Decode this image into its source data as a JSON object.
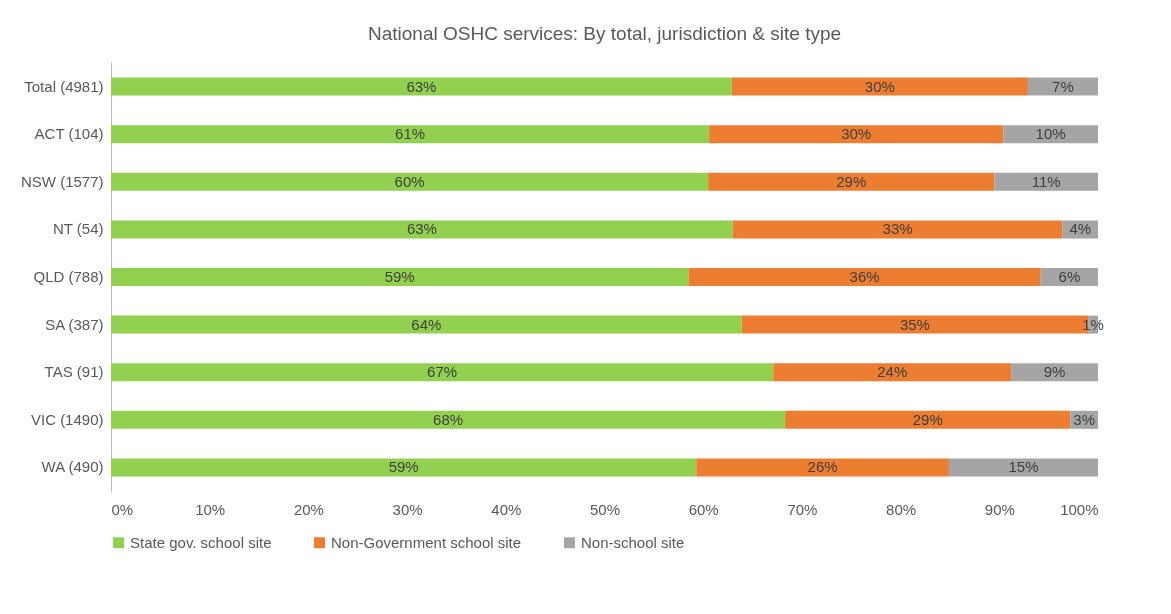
{
  "chart_data": {
    "type": "bar",
    "orientation": "horizontal",
    "stacked": true,
    "title": "National OSHC services: By total, jurisdiction & site type",
    "categories": [
      "Total (4981)",
      "ACT (104)",
      "NSW (1577)",
      "NT (54)",
      "QLD (788)",
      "SA (387)",
      "TAS (91)",
      "VIC (1490)",
      "WA (490)"
    ],
    "series": [
      {
        "name": "State gov. school site",
        "color": "#92d050",
        "values": [
          62.9,
          60.6,
          60.5,
          63.0,
          58.5,
          63.9,
          67.1,
          68.3,
          59.3
        ],
        "value_labels": [
          "63%",
          "61%",
          "60%",
          "63%",
          "59%",
          "64%",
          "67%",
          "68%",
          "59%"
        ]
      },
      {
        "name": "Non-Government school site",
        "color": "#ed7d31",
        "values": [
          30.0,
          29.8,
          29.0,
          33.4,
          35.7,
          35.1,
          24.1,
          28.9,
          25.6
        ],
        "value_labels": [
          "30%",
          "30%",
          "29%",
          "33%",
          "36%",
          "35%",
          "24%",
          "29%",
          "26%"
        ]
      },
      {
        "name": "Non-school site",
        "color": "#a5a5a5",
        "values": [
          7.1,
          9.6,
          10.5,
          3.6,
          5.8,
          1.0,
          8.8,
          2.8,
          15.1
        ],
        "value_labels": [
          "7%",
          "10%",
          "11%",
          "4%",
          "6%",
          "1%",
          "9%",
          "3%",
          "15%"
        ]
      }
    ],
    "xlim": [
      0,
      100
    ],
    "xticks": [
      {
        "value": 0,
        "label": "0%"
      },
      {
        "value": 10,
        "label": "10%"
      },
      {
        "value": 20,
        "label": "20%"
      },
      {
        "value": 30,
        "label": "30%"
      },
      {
        "value": 40,
        "label": "40%"
      },
      {
        "value": 50,
        "label": "50%"
      },
      {
        "value": 60,
        "label": "60%"
      },
      {
        "value": 70,
        "label": "70%"
      },
      {
        "value": 80,
        "label": "80%"
      },
      {
        "value": 90,
        "label": "90%"
      },
      {
        "value": 100,
        "label": "100%"
      }
    ],
    "legend": "bottom",
    "grid": false
  }
}
